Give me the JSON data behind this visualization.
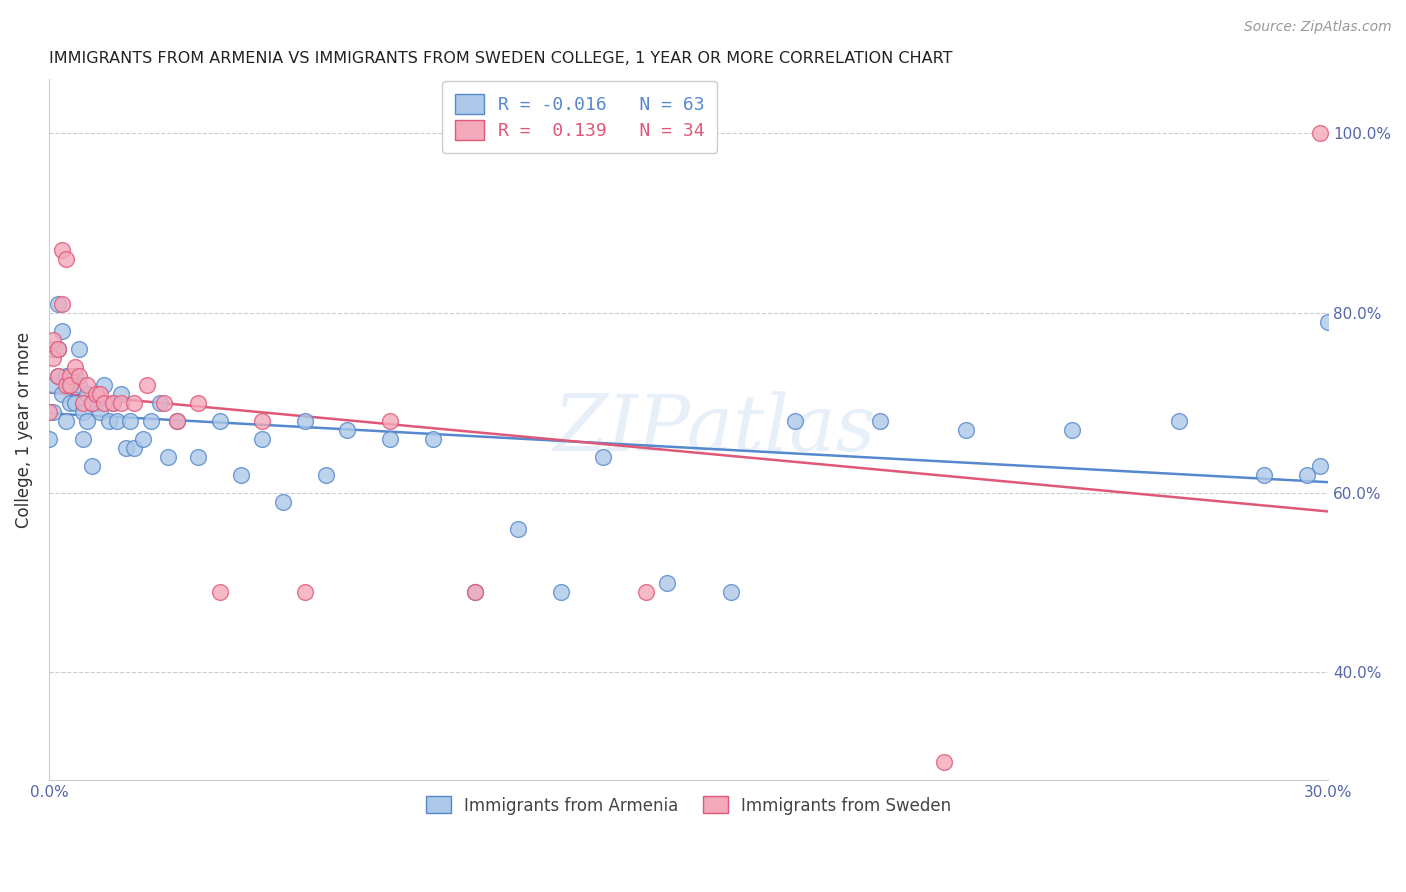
{
  "title": "IMMIGRANTS FROM ARMENIA VS IMMIGRANTS FROM SWEDEN COLLEGE, 1 YEAR OR MORE CORRELATION CHART",
  "source": "Source: ZipAtlas.com",
  "ylabel": "College, 1 year or more",
  "legend_labels": [
    "Immigrants from Armenia",
    "Immigrants from Sweden"
  ],
  "legend_r_armenia": "-0.016",
  "legend_n_armenia": "63",
  "legend_r_sweden": " 0.139",
  "legend_n_sweden": "34",
  "color_armenia": "#adc8e8",
  "color_sweden": "#f4a8bb",
  "line_color_armenia": "#5588cc",
  "line_color_sweden": "#e05878",
  "background_color": "#ffffff",
  "armenia_x": [
    0.0,
    0.001,
    0.001,
    0.001,
    0.002,
    0.002,
    0.002,
    0.003,
    0.003,
    0.004,
    0.004,
    0.005,
    0.005,
    0.006,
    0.006,
    0.007,
    0.007,
    0.008,
    0.008,
    0.009,
    0.009,
    0.01,
    0.01,
    0.011,
    0.012,
    0.013,
    0.014,
    0.015,
    0.016,
    0.017,
    0.018,
    0.019,
    0.02,
    0.022,
    0.024,
    0.026,
    0.028,
    0.03,
    0.035,
    0.04,
    0.045,
    0.05,
    0.055,
    0.06,
    0.065,
    0.07,
    0.08,
    0.09,
    0.1,
    0.11,
    0.12,
    0.13,
    0.145,
    0.16,
    0.175,
    0.195,
    0.215,
    0.24,
    0.265,
    0.285,
    0.295,
    0.298,
    0.3
  ],
  "armenia_y": [
    0.66,
    0.69,
    0.72,
    0.76,
    0.73,
    0.76,
    0.81,
    0.71,
    0.78,
    0.73,
    0.68,
    0.72,
    0.7,
    0.73,
    0.7,
    0.72,
    0.76,
    0.69,
    0.66,
    0.71,
    0.68,
    0.63,
    0.7,
    0.7,
    0.69,
    0.72,
    0.68,
    0.7,
    0.68,
    0.71,
    0.65,
    0.68,
    0.65,
    0.66,
    0.68,
    0.7,
    0.64,
    0.68,
    0.64,
    0.68,
    0.62,
    0.66,
    0.59,
    0.68,
    0.62,
    0.67,
    0.66,
    0.66,
    0.49,
    0.56,
    0.49,
    0.64,
    0.5,
    0.49,
    0.68,
    0.68,
    0.67,
    0.67,
    0.68,
    0.62,
    0.62,
    0.63,
    0.79
  ],
  "sweden_x": [
    0.0,
    0.001,
    0.001,
    0.002,
    0.002,
    0.003,
    0.003,
    0.004,
    0.004,
    0.005,
    0.005,
    0.006,
    0.007,
    0.008,
    0.009,
    0.01,
    0.011,
    0.012,
    0.013,
    0.015,
    0.017,
    0.02,
    0.023,
    0.027,
    0.03,
    0.035,
    0.04,
    0.05,
    0.06,
    0.08,
    0.1,
    0.14,
    0.21,
    0.298
  ],
  "sweden_y": [
    0.69,
    0.75,
    0.77,
    0.73,
    0.76,
    0.81,
    0.87,
    0.72,
    0.86,
    0.73,
    0.72,
    0.74,
    0.73,
    0.7,
    0.72,
    0.7,
    0.71,
    0.71,
    0.7,
    0.7,
    0.7,
    0.7,
    0.72,
    0.7,
    0.68,
    0.7,
    0.49,
    0.68,
    0.49,
    0.68,
    0.49,
    0.49,
    0.3,
    1.0
  ],
  "xlim": [
    0.0,
    0.3
  ],
  "ylim": [
    0.28,
    1.06
  ],
  "xticks": [
    0.0,
    0.05,
    0.1,
    0.15,
    0.2,
    0.25,
    0.3
  ],
  "ytick_positions": [
    0.4,
    0.6,
    0.8,
    1.0
  ],
  "ytick_labels": [
    "40.0%",
    "60.0%",
    "80.0%",
    "100.0%"
  ],
  "grid_color": "#cccccc",
  "tick_label_color": "#5566aa",
  "title_color": "#222222",
  "source_color": "#999999",
  "ylabel_color": "#333333",
  "watermark_color": "#c5daf0",
  "watermark_alpha": 0.4
}
